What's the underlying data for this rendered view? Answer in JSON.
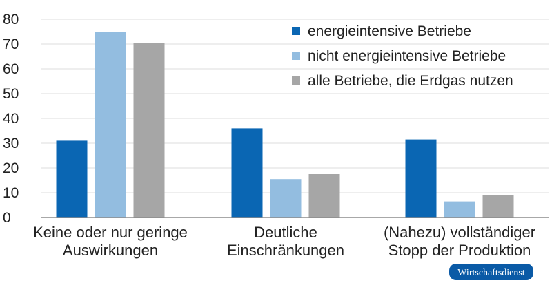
{
  "chart_data": {
    "type": "bar",
    "title": "",
    "xlabel": "",
    "ylabel": "",
    "ylim": [
      0,
      80
    ],
    "yticks": [
      0,
      10,
      20,
      30,
      40,
      50,
      60,
      70,
      80
    ],
    "grid": true,
    "legend_position": "top-right",
    "categories": [
      [
        "Keine oder nur geringe",
        "Auswirkungen"
      ],
      [
        "Deutliche",
        "Einschränkungen"
      ],
      [
        "(Nahezu) vollständiger",
        "Stopp der Produktion"
      ]
    ],
    "series": [
      {
        "name": "energieintensive Betriebe",
        "color": "#0a66b3",
        "values": [
          31,
          36,
          31.5
        ]
      },
      {
        "name": "nicht energieintensive Betriebe",
        "color": "#93bde0",
        "values": [
          75,
          15.5,
          6.5
        ]
      },
      {
        "name": "alle Betriebe, die Erdgas nutzen",
        "color": "#a6a6a6",
        "values": [
          70.5,
          17.5,
          9
        ]
      }
    ]
  },
  "badge": {
    "text": "Wirtschaftsdienst",
    "color": "#0a5aa6"
  }
}
